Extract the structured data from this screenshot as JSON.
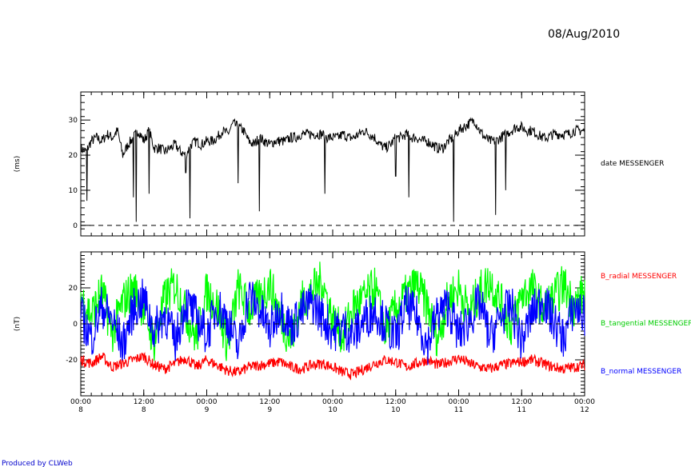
{
  "header": {
    "date": "08/Aug/2010"
  },
  "footer": {
    "credit": "Produced by CLWeb"
  },
  "chart_data": [
    {
      "type": "line",
      "panel": "top",
      "ylabel": "(ms)",
      "ylim": [
        -3,
        38
      ],
      "yticks": [
        0,
        10,
        20,
        30
      ],
      "reference_line": 0,
      "series": [
        {
          "name": "date MESSENGER",
          "color": "#000000",
          "x_hours": [
            0,
            1,
            2,
            3,
            4,
            5,
            6,
            7,
            8,
            9,
            10,
            11,
            12,
            13,
            14,
            15,
            16,
            17,
            18,
            19,
            20,
            21,
            22,
            23,
            24,
            25,
            26,
            27,
            28,
            29,
            30,
            31,
            32,
            33,
            34,
            35,
            36,
            37,
            38,
            39,
            40,
            41,
            42,
            43,
            44,
            45,
            46,
            47,
            48,
            49,
            50,
            51,
            52,
            53,
            54,
            55,
            56,
            57,
            58,
            59,
            60,
            61,
            62,
            63,
            64,
            65,
            66,
            67,
            68,
            69,
            70,
            71,
            72,
            73,
            74,
            75,
            76,
            77,
            78,
            79,
            80,
            81,
            82,
            83,
            84,
            85,
            86,
            87,
            88,
            89,
            90,
            91,
            92,
            93,
            94,
            95,
            96
          ],
          "values": [
            22,
            21,
            24,
            25,
            24,
            26,
            25,
            27,
            20,
            23,
            25,
            27,
            24,
            27,
            22,
            22,
            21,
            22,
            23,
            21,
            20,
            23,
            24,
            23,
            24,
            24,
            25,
            27,
            26,
            29,
            28,
            27,
            24,
            23,
            25,
            24,
            23,
            24,
            24,
            24,
            25,
            25,
            26,
            26,
            26,
            26,
            26,
            25,
            25,
            25,
            26,
            25,
            25,
            26,
            27,
            26,
            25,
            23,
            22,
            23,
            25,
            25,
            26,
            25,
            25,
            24,
            24,
            23,
            22,
            22,
            24,
            25,
            27,
            28,
            29,
            30,
            27,
            25,
            24,
            24,
            25,
            26,
            27,
            28,
            28,
            27,
            27,
            26,
            25,
            25,
            26,
            26,
            26,
            26,
            27,
            27,
            27
          ]
        }
      ],
      "dips": [
        [
          1.2,
          7
        ],
        [
          10,
          8
        ],
        [
          10.6,
          1
        ],
        [
          13,
          9
        ],
        [
          20,
          15
        ],
        [
          20.8,
          2
        ],
        [
          30,
          12
        ],
        [
          34,
          4
        ],
        [
          46.5,
          9
        ],
        [
          60,
          14
        ],
        [
          62.5,
          8
        ],
        [
          71,
          1
        ],
        [
          79,
          3
        ],
        [
          81,
          10
        ]
      ]
    },
    {
      "type": "line",
      "panel": "bottom",
      "ylabel": "(nT)",
      "ylim": [
        -40,
        40
      ],
      "yticks": [
        -20,
        0,
        20
      ],
      "reference_line": 0,
      "series": [
        {
          "name": "B_radial MESSENGER",
          "color": "#ff0000",
          "x_hours": [
            0,
            2,
            4,
            6,
            8,
            10,
            12,
            14,
            16,
            18,
            20,
            22,
            24,
            26,
            28,
            30,
            32,
            34,
            36,
            38,
            40,
            42,
            44,
            46,
            48,
            50,
            52,
            54,
            56,
            58,
            60,
            62,
            64,
            66,
            68,
            70,
            72,
            74,
            76,
            78,
            80,
            82,
            84,
            86,
            88,
            90,
            92,
            94,
            96
          ],
          "values": [
            -20,
            -22,
            -18,
            -24,
            -22,
            -20,
            -18,
            -23,
            -25,
            -22,
            -19,
            -24,
            -20,
            -23,
            -26,
            -27,
            -24,
            -23,
            -22,
            -21,
            -24,
            -25,
            -23,
            -22,
            -24,
            -27,
            -28,
            -25,
            -22,
            -20,
            -21,
            -24,
            -22,
            -20,
            -23,
            -21,
            -19,
            -22,
            -24,
            -25,
            -23,
            -22,
            -21,
            -20,
            -22,
            -24,
            -25,
            -24,
            -23
          ]
        },
        {
          "name": "B_tangential MESSENGER",
          "color": "#00ff00",
          "x_hours": [
            0,
            2,
            4,
            6,
            8,
            10,
            12,
            14,
            16,
            18,
            20,
            22,
            24,
            26,
            28,
            30,
            32,
            34,
            36,
            38,
            40,
            42,
            44,
            46,
            48,
            50,
            52,
            54,
            56,
            58,
            60,
            62,
            64,
            66,
            68,
            70,
            72,
            74,
            76,
            78,
            80,
            82,
            84,
            86,
            88,
            90,
            92,
            94,
            96
          ],
          "values": [
            15,
            5,
            18,
            -5,
            12,
            20,
            8,
            -10,
            14,
            22,
            6,
            -8,
            18,
            10,
            -12,
            20,
            8,
            14,
            22,
            5,
            -10,
            12,
            18,
            24,
            2,
            -6,
            10,
            14,
            20,
            -4,
            8,
            16,
            22,
            10,
            -8,
            14,
            20,
            6,
            18,
            24,
            12,
            -2,
            16,
            20,
            8,
            14,
            22,
            10,
            18
          ]
        },
        {
          "name": "B_normal MESSENGER",
          "color": "#0000ff",
          "x_hours": [
            0,
            2,
            4,
            6,
            8,
            10,
            12,
            14,
            16,
            18,
            20,
            22,
            24,
            26,
            28,
            30,
            32,
            34,
            36,
            38,
            40,
            42,
            44,
            46,
            48,
            50,
            52,
            54,
            56,
            58,
            60,
            62,
            64,
            66,
            68,
            70,
            72,
            74,
            76,
            78,
            80,
            82,
            84,
            86,
            88,
            90,
            92,
            94,
            96
          ],
          "values": [
            5,
            -8,
            10,
            2,
            -12,
            8,
            14,
            -4,
            6,
            -10,
            12,
            4,
            -6,
            10,
            2,
            -14,
            16,
            8,
            -4,
            10,
            -2,
            6,
            12,
            4,
            -4,
            -2,
            -6,
            2,
            8,
            0,
            -8,
            10,
            4,
            -12,
            6,
            10,
            -6,
            2,
            12,
            -8,
            4,
            10,
            -10,
            6,
            14,
            2,
            -8,
            10,
            4
          ]
        }
      ]
    }
  ],
  "x_axis": {
    "range_hours": [
      0,
      96
    ],
    "ticks": [
      {
        "hour": 0,
        "time": "00:00",
        "day": "8"
      },
      {
        "hour": 12,
        "time": "12:00",
        "day": "8"
      },
      {
        "hour": 24,
        "time": "00:00",
        "day": "9"
      },
      {
        "hour": 36,
        "time": "12:00",
        "day": "9"
      },
      {
        "hour": 48,
        "time": "00:00",
        "day": "10"
      },
      {
        "hour": 60,
        "time": "12:00",
        "day": "10"
      },
      {
        "hour": 72,
        "time": "00:00",
        "day": "11"
      },
      {
        "hour": 84,
        "time": "12:00",
        "day": "11"
      },
      {
        "hour": 96,
        "time": "00:00",
        "day": "12"
      }
    ]
  }
}
